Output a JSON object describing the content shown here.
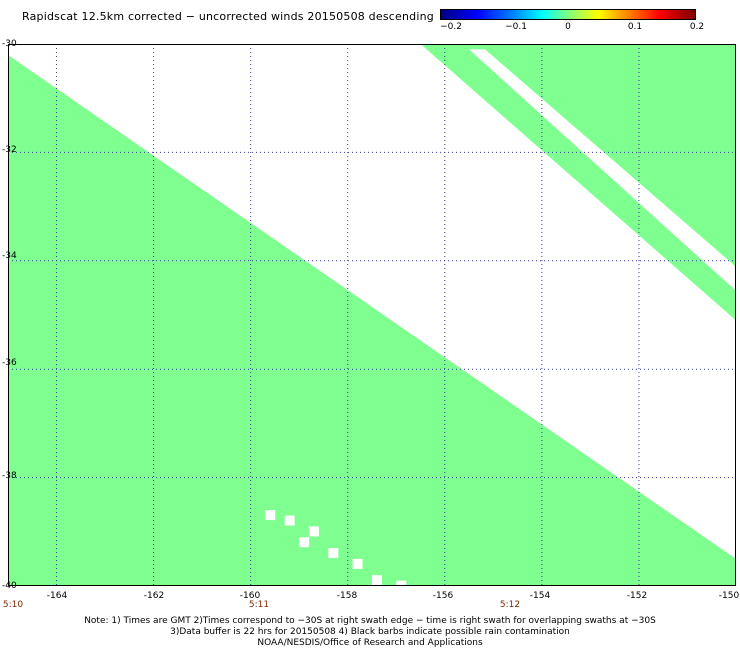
{
  "title": "Rapidscat 12.5km corrected − uncorrected winds 20150508 descending",
  "colorbar": {
    "ticks": [
      "−0.2",
      "−0.1",
      "0",
      "0.1",
      "0.2"
    ],
    "range": [
      -0.2,
      0.2
    ]
  },
  "axes": {
    "y_ticks": [
      "-30",
      "-32",
      "-34",
      "-36",
      "-38",
      "-40"
    ],
    "x_ticks": [
      "-164",
      "-162",
      "-160",
      "-158",
      "-156",
      "-154",
      "-152",
      "-150"
    ],
    "time_labels": [
      "5:10",
      "5:11",
      "5:12"
    ]
  },
  "notes": [
    "Note: 1) Times are GMT 2)Times correspond to −30S at right swath edge − time is right swath for overlapping swaths at −30S",
    "3)Data buffer is 22 hrs for 20150508 4) Black barbs indicate possible rain contamination",
    "NOAA/NESDIS/Office of Research and Applications"
  ],
  "chart_data": {
    "type": "heatmap",
    "title": "Rapidscat 12.5km corrected − uncorrected winds 20150508 descending",
    "x_range": [
      -165,
      -150
    ],
    "y_range": [
      -40,
      -30
    ],
    "x_ticks": [
      -164,
      -162,
      -160,
      -158,
      -156,
      -154,
      -152,
      -150
    ],
    "y_ticks": [
      -30,
      -32,
      -34,
      -36,
      -38,
      -40
    ],
    "colorbar_range": [
      -0.2,
      0.2
    ],
    "fill_color": "#7fff8f",
    "value_shown": 0,
    "swaths": [
      {
        "name": "lower-left swath",
        "upper_edge": [
          [
            -165,
            -30.2
          ],
          [
            -150,
            -39.5
          ]
        ]
      },
      {
        "name": "upper-right swath",
        "lower_edge": [
          [
            -156.5,
            -30.0
          ],
          [
            -150,
            -35.1
          ]
        ],
        "inner_edge": [
          [
            -155.5,
            -30.1
          ],
          [
            -150,
            -34.0
          ]
        ]
      }
    ]
  }
}
